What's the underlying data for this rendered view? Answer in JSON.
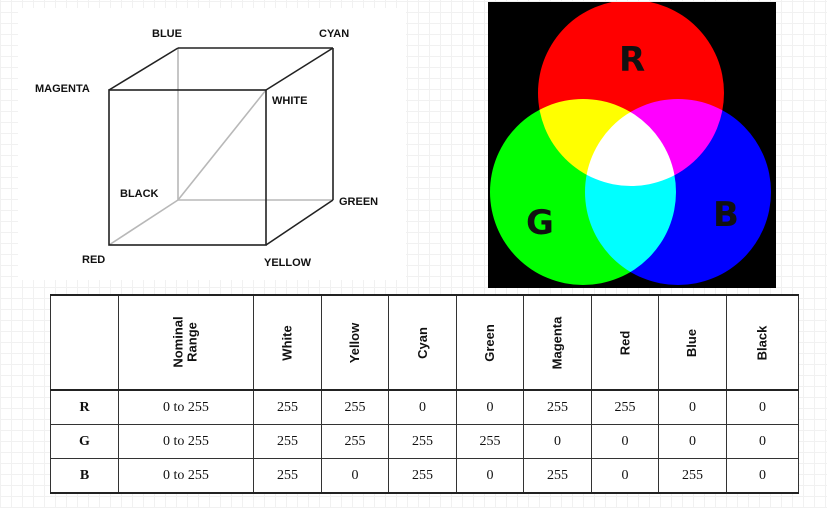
{
  "cube": {
    "labels": {
      "blue": "BLUE",
      "cyan": "CYAN",
      "magenta": "MAGENTA",
      "white": "WHITE",
      "black": "BLACK",
      "green": "GREEN",
      "red": "RED",
      "yellow": "YELLOW"
    }
  },
  "rgb_circles": {
    "letters": {
      "r": "R",
      "g": "G",
      "b": "B"
    },
    "colors": {
      "red": "#ff0000",
      "green": "#00ff00",
      "blue": "#0000ff",
      "background": "#000000"
    }
  },
  "table": {
    "corner": "",
    "headers": {
      "range_line1": "Nominal",
      "range_line2": "Range",
      "white": "White",
      "yellow": "Yellow",
      "cyan": "Cyan",
      "green": "Green",
      "magenta": "Magenta",
      "red": "Red",
      "blue": "Blue",
      "black": "Black"
    },
    "rows": [
      {
        "label": "R",
        "range": "0 to 255",
        "white": "255",
        "yellow": "255",
        "cyan": "0",
        "green": "0",
        "magenta": "255",
        "red": "255",
        "blue": "0",
        "black": "0"
      },
      {
        "label": "G",
        "range": "0 to 255",
        "white": "255",
        "yellow": "255",
        "cyan": "255",
        "green": "255",
        "magenta": "0",
        "red": "0",
        "blue": "0",
        "black": "0"
      },
      {
        "label": "B",
        "range": "0 to 255",
        "white": "255",
        "yellow": "0",
        "cyan": "255",
        "green": "0",
        "magenta": "255",
        "red": "0",
        "blue": "255",
        "black": "0"
      }
    ]
  }
}
